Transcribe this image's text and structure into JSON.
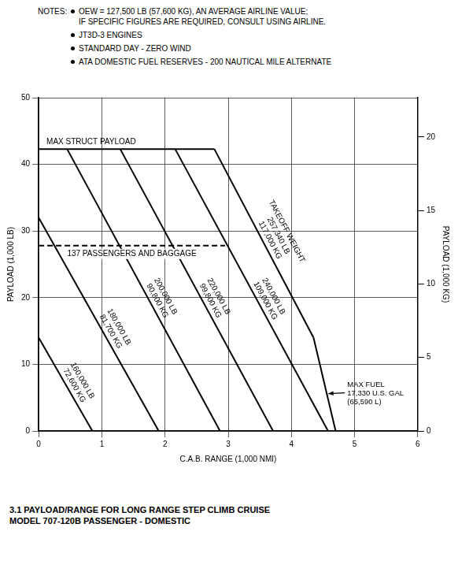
{
  "chart_data": {
    "type": "line",
    "notes_title": "NOTES:",
    "notes": [
      [
        "OEW = 127,500 LB (57,600 KG), AN AVERAGE AIRLINE VALUE;",
        "IF SPECIFIC FIGURES ARE REQUIRED, CONSULT USING AIRLINE."
      ],
      [
        "JT3D-3 ENGINES"
      ],
      [
        "STANDARD DAY - ZERO WIND"
      ],
      [
        "ATA DOMESTIC FUEL RESERVES - 200 NAUTICAL MILE ALTERNATE"
      ]
    ],
    "caption": [
      "3.1 PAYLOAD/RANGE FOR LONG RANGE STEP CLIMB CRUISE",
      "MODEL 707-120B PASSENGER - DOMESTIC"
    ],
    "x_label": "C.A.B. RANGE (1,000 NMI)",
    "y_label": "PAYLOAD (1,000 LB)",
    "y2_label": "PAYLOAD (1,000 KG)",
    "xlim": [
      0,
      6
    ],
    "xticks": [
      0,
      1,
      2,
      3,
      4,
      5,
      6
    ],
    "ylim": [
      0,
      50
    ],
    "yticks": [
      0,
      10,
      20,
      30,
      40,
      50
    ],
    "y2lim": [
      0,
      22.68
    ],
    "y2ticks": [
      0,
      5,
      10,
      15,
      20
    ],
    "grid": true,
    "takeoff_weight": {
      "title": "TAKEOFF WEIGHT",
      "series": [
        {
          "label": [
            "160,000 LB",
            "72,600 KG"
          ],
          "color": "#000000",
          "line_style": "solid",
          "x": [
            0,
            0.85
          ],
          "values": [
            14,
            0
          ]
        },
        {
          "label": [
            "180,000 LB",
            "81,700 KG"
          ],
          "color": "#000000",
          "line_style": "solid",
          "x": [
            0,
            1.9
          ],
          "values": [
            32,
            0
          ]
        },
        {
          "label": [
            "200,000 LB",
            "90,800 KG"
          ],
          "color": "#000000",
          "line_style": "solid",
          "x": [
            0.45,
            2.87
          ],
          "values": [
            42.3,
            0
          ]
        },
        {
          "label": [
            "220,000 LB",
            "99,800 KG"
          ],
          "color": "#000000",
          "line_style": "solid",
          "x": [
            1.29,
            3.71
          ],
          "values": [
            42.3,
            0
          ]
        },
        {
          "label": [
            "240,000 LB",
            "109,000 KG"
          ],
          "color": "#000000",
          "line_style": "solid",
          "x": [
            2.16,
            4.58
          ],
          "values": [
            42.3,
            0
          ]
        },
        {
          "label": [
            "257,340 LB",
            "117,000 KG"
          ],
          "color": "#000000",
          "line_style": "solid",
          "x": [
            2.78,
            4.35
          ],
          "values": [
            42.3,
            14
          ]
        }
      ]
    },
    "max_struct_payload": {
      "label": "MAX STRUCT PAYLOAD",
      "color": "#000000",
      "line_style": "solid",
      "x": [
        0,
        2.78
      ],
      "values": [
        42.3,
        42.3
      ]
    },
    "passengers": {
      "label": "137 PASSENGERS AND BAGGAGE",
      "color": "#000000",
      "line_style": "dashed",
      "x": [
        0,
        2.95
      ],
      "values": [
        27.8,
        27.8
      ]
    },
    "max_fuel": {
      "label": [
        "MAX FUEL",
        "17,330 U.S. GAL",
        "(65,590 L)"
      ],
      "color": "#000000",
      "line_style": "solid",
      "x": [
        4.35,
        4.7
      ],
      "values": [
        14,
        0
      ]
    }
  }
}
